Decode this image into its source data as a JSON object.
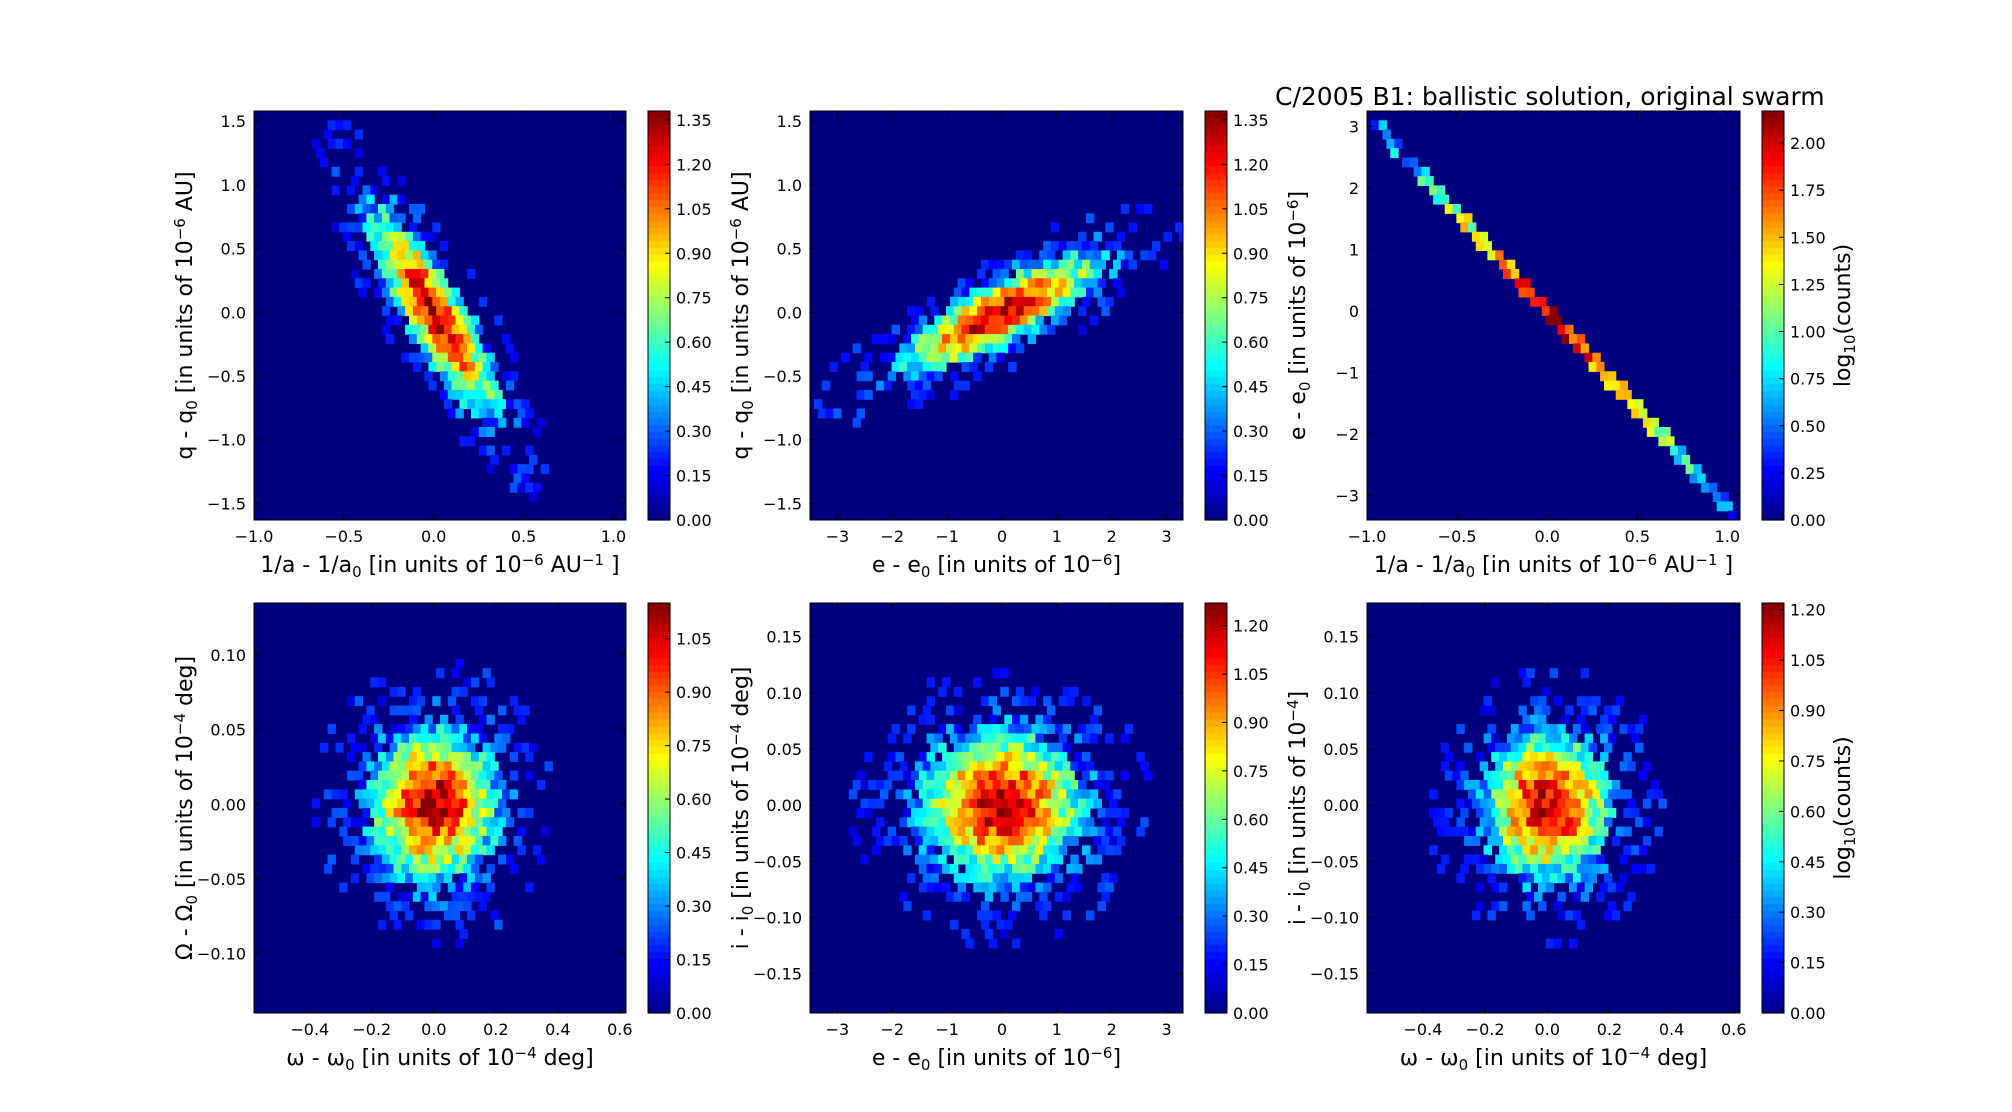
{
  "figure": {
    "title": "C/2005 B1:  ballistic solution, original swarm"
  },
  "colors": {
    "background": "#00007f",
    "jet": [
      "#00007f",
      "#0000ff",
      "#007fff",
      "#00ffff",
      "#7fff7f",
      "#ffff00",
      "#ff7f00",
      "#ff0000",
      "#7f0000"
    ]
  },
  "chart_data": [
    {
      "type": "heatmap",
      "panel": "top-left",
      "xlabel": "1/a - 1/a0 [in units of 10^-6 AU^-1]",
      "ylabel": "q - q0 [in units of 10^-6 AU]",
      "xlim": [
        -1.0,
        1.07
      ],
      "ylim": [
        -1.63,
        1.58
      ],
      "xticks": [
        "−1.0",
        "−0.5",
        "0.0",
        "0.5",
        "1.0"
      ],
      "xtick_values": [
        -1.0,
        -0.5,
        0.0,
        0.5,
        1.0
      ],
      "yticks": [
        "−1.5",
        "−1.0",
        "−0.5",
        "0.0",
        "0.5",
        "1.0",
        "1.5"
      ],
      "ytick_values": [
        -1.5,
        -1.0,
        -0.5,
        0.0,
        0.5,
        1.0,
        1.5
      ],
      "distribution": {
        "shape": "ellipse",
        "center": [
          0.0,
          0.0
        ],
        "major_dir": [
          1.0,
          -1.55
        ],
        "major_sd": 1.0,
        "minor_sd": 0.16
      },
      "colorbar": {
        "label": "",
        "ticks": [
          "0.00",
          "0.15",
          "0.30",
          "0.45",
          "0.60",
          "0.75",
          "0.90",
          "1.05",
          "1.20",
          "1.35"
        ],
        "tick_values": [
          0,
          0.15,
          0.3,
          0.45,
          0.6,
          0.75,
          0.9,
          1.05,
          1.2,
          1.35
        ],
        "range": [
          0,
          1.38
        ]
      }
    },
    {
      "type": "heatmap",
      "panel": "top-middle",
      "xlabel": "e - e0 [in units of 10^-6]",
      "ylabel": "q - q0 [in units of 10^-6 AU]",
      "xlim": [
        -3.5,
        3.3
      ],
      "ylim": [
        -1.63,
        1.58
      ],
      "xticks": [
        "−3",
        "−2",
        "−1",
        "0",
        "1",
        "2",
        "3"
      ],
      "xtick_values": [
        -3,
        -2,
        -1,
        0,
        1,
        2,
        3
      ],
      "yticks": [
        "−1.5",
        "−1.0",
        "−0.5",
        "0.0",
        "0.5",
        "1.0",
        "1.5"
      ],
      "ytick_values": [
        -1.5,
        -1.0,
        -0.5,
        0.0,
        0.5,
        1.0,
        1.5
      ],
      "distribution": {
        "shape": "ellipse",
        "center": [
          0.0,
          0.0
        ],
        "major_dir": [
          1.0,
          0.48
        ],
        "major_sd": 1.0,
        "minor_sd": 0.16
      },
      "colorbar": {
        "label": "",
        "ticks": [
          "0.00",
          "0.15",
          "0.30",
          "0.45",
          "0.60",
          "0.75",
          "0.90",
          "1.05",
          "1.20",
          "1.35"
        ],
        "tick_values": [
          0,
          0.15,
          0.3,
          0.45,
          0.6,
          0.75,
          0.9,
          1.05,
          1.2,
          1.35
        ],
        "range": [
          0,
          1.38
        ]
      }
    },
    {
      "type": "heatmap",
      "panel": "top-right",
      "xlabel": "1/a - 1/a0 [in units of 10^-6 AU^-1]",
      "ylabel": "e - e0 [in units of 10^-6]",
      "xlim": [
        -1.0,
        1.07
      ],
      "ylim": [
        -3.4,
        3.25
      ],
      "xticks": [
        "−1.0",
        "−0.5",
        "0.0",
        "0.5",
        "1.0"
      ],
      "xtick_values": [
        -1.0,
        -0.5,
        0.0,
        0.5,
        1.0
      ],
      "yticks": [
        "−3",
        "−2",
        "−1",
        "0",
        "1",
        "2",
        "3"
      ],
      "ytick_values": [
        -3,
        -2,
        -1,
        0,
        1,
        2,
        3
      ],
      "distribution": {
        "shape": "line",
        "from": [
          -0.96,
          3.05
        ],
        "to": [
          1.02,
          -3.25
        ]
      },
      "colorbar": {
        "label": "log10(counts)",
        "ticks": [
          "0.00",
          "0.25",
          "0.50",
          "0.75",
          "1.00",
          "1.25",
          "1.50",
          "1.75",
          "2.00"
        ],
        "tick_values": [
          0,
          0.25,
          0.5,
          0.75,
          1.0,
          1.25,
          1.5,
          1.75,
          2.0
        ],
        "range": [
          0,
          2.17
        ]
      }
    },
    {
      "type": "heatmap",
      "panel": "bottom-left",
      "xlabel": "ω - ω0 [in units of 10^-4 deg]",
      "ylabel": "Ω - Ω0 [in units of 10^-4 deg]",
      "xlim": [
        -0.58,
        0.62
      ],
      "ylim": [
        -0.14,
        0.135
      ],
      "xticks": [
        "−0.4",
        "−0.2",
        "0.0",
        "0.2",
        "0.4",
        "0.6"
      ],
      "xtick_values": [
        -0.4,
        -0.2,
        0.0,
        0.2,
        0.4,
        0.6
      ],
      "yticks": [
        "−0.10",
        "−0.05",
        "0.00",
        "0.05",
        "0.10"
      ],
      "ytick_values": [
        -0.1,
        -0.05,
        0.0,
        0.05,
        0.1
      ],
      "distribution": {
        "shape": "blob",
        "center": [
          0.0,
          0.0
        ],
        "sd": [
          0.14,
          0.035
        ]
      },
      "colorbar": {
        "label": "",
        "ticks": [
          "0.00",
          "0.15",
          "0.30",
          "0.45",
          "0.60",
          "0.75",
          "0.90",
          "1.05"
        ],
        "tick_values": [
          0,
          0.15,
          0.3,
          0.45,
          0.6,
          0.75,
          0.9,
          1.05
        ],
        "range": [
          0,
          1.15
        ]
      }
    },
    {
      "type": "heatmap",
      "panel": "bottom-middle",
      "xlabel": "e - e0 [in units of 10^-6]",
      "ylabel": "i - i0 [in units of 10^-4 deg]",
      "xlim": [
        -3.5,
        3.3
      ],
      "ylim": [
        -0.185,
        0.18
      ],
      "xticks": [
        "−3",
        "−2",
        "−1",
        "0",
        "1",
        "2",
        "3"
      ],
      "xtick_values": [
        -3,
        -2,
        -1,
        0,
        1,
        2,
        3
      ],
      "yticks": [
        "−0.15",
        "−0.10",
        "−0.05",
        "0.00",
        "0.05",
        "0.10",
        "0.15"
      ],
      "ytick_values": [
        -0.15,
        -0.1,
        -0.05,
        0.0,
        0.05,
        0.1,
        0.15
      ],
      "distribution": {
        "shape": "blob",
        "center": [
          0.0,
          0.0
        ],
        "sd": [
          1.0,
          0.045
        ]
      },
      "colorbar": {
        "label": "",
        "ticks": [
          "0.00",
          "0.15",
          "0.30",
          "0.45",
          "0.60",
          "0.75",
          "0.90",
          "1.05",
          "1.20"
        ],
        "tick_values": [
          0,
          0.15,
          0.3,
          0.45,
          0.6,
          0.75,
          0.9,
          1.05,
          1.2
        ],
        "range": [
          0,
          1.27
        ]
      }
    },
    {
      "type": "heatmap",
      "panel": "bottom-right",
      "xlabel": "ω - ω0 [in units of 10^-4 deg]",
      "ylabel": "i - i0 [in units of 10^-4]",
      "xlim": [
        -0.58,
        0.62
      ],
      "ylim": [
        -0.185,
        0.18
      ],
      "xticks": [
        "−0.4",
        "−0.2",
        "0.0",
        "0.2",
        "0.4",
        "0.6"
      ],
      "xtick_values": [
        -0.4,
        -0.2,
        0.0,
        0.2,
        0.4,
        0.6
      ],
      "yticks": [
        "−0.15",
        "−0.10",
        "−0.05",
        "0.00",
        "0.05",
        "0.10",
        "0.15"
      ],
      "ytick_values": [
        -0.15,
        -0.1,
        -0.05,
        0.0,
        0.05,
        0.1,
        0.15
      ],
      "distribution": {
        "shape": "blob",
        "center": [
          0.0,
          0.0
        ],
        "sd": [
          0.14,
          0.045
        ]
      },
      "colorbar": {
        "label": "log10(counts)",
        "ticks": [
          "0.00",
          "0.15",
          "0.30",
          "0.45",
          "0.60",
          "0.75",
          "0.90",
          "1.05",
          "1.20"
        ],
        "tick_values": [
          0,
          0.15,
          0.3,
          0.45,
          0.6,
          0.75,
          0.9,
          1.05,
          1.2
        ],
        "range": [
          0,
          1.22
        ]
      }
    }
  ]
}
